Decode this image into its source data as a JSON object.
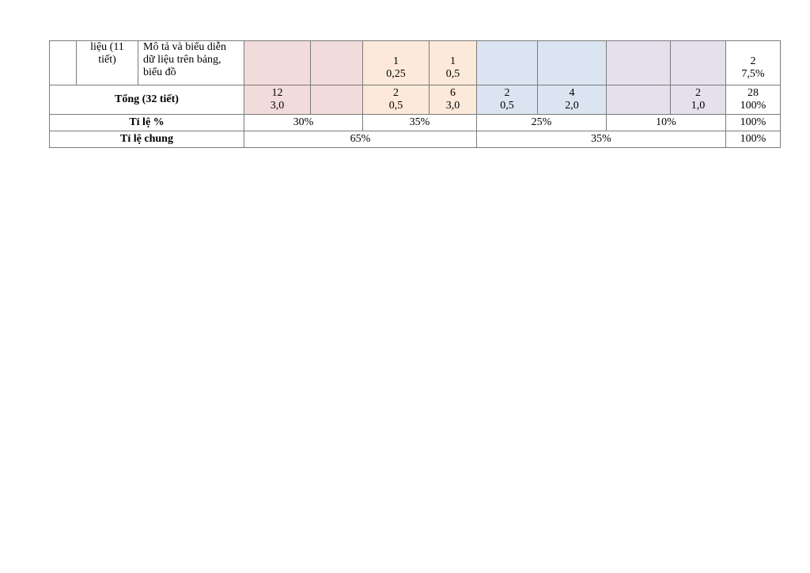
{
  "row_topic": {
    "unit": "liệu (11 tiết)",
    "unit_line1": "liệu (11",
    "unit_line2": "tiết)",
    "content_line1": "Mô tả và biểu diễn",
    "content_line2": "dữ liệu trên bảng,",
    "content_line3": "biểu đồ",
    "thong_hieu_tn_count": "1",
    "thong_hieu_tn_score": "0,25",
    "thong_hieu_tl_count": "1",
    "thong_hieu_tl_score": "0,5",
    "total_count": "2",
    "total_percent": "7,5%"
  },
  "row_total": {
    "label": "Tổng (32 tiết)",
    "nb_tn_count": "12",
    "nb_tn_score": "3,0",
    "th_tn_count": "2",
    "th_tn_score": "0,5",
    "th_tl_count": "6",
    "th_tl_score": "3,0",
    "vd_tn_count": "2",
    "vd_tn_score": "0,5",
    "vd_tl_count": "4",
    "vd_tl_score": "2,0",
    "vdc_tl_count": "2",
    "vdc_tl_score": "1,0",
    "total_count": "28",
    "total_percent": "100%"
  },
  "row_ratio": {
    "label": "Tỉ lệ %",
    "nhan_biet": "30%",
    "thong_hieu": "35%",
    "van_dung": "25%",
    "van_dung_cao": "10%",
    "total": "100%"
  },
  "row_general": {
    "label": "Tỉ lệ chung",
    "left": "65%",
    "right": "35%",
    "total": "100%"
  }
}
